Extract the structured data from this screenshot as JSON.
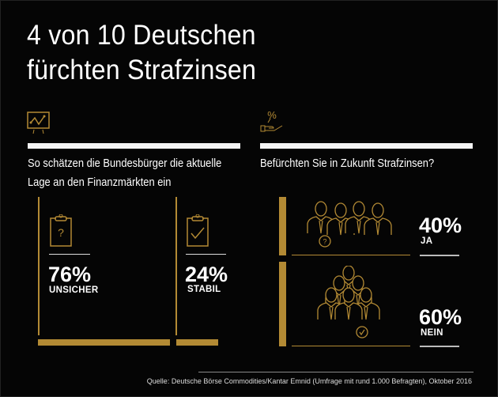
{
  "title": {
    "line1": "4 von 10 Deutschen",
    "line2": "fürchten Strafzinsen"
  },
  "left": {
    "icon": "presentation-chart-icon",
    "question_line1": "So schätzen die Bundesbürger die aktuelle",
    "question_line2": "Lage an den Finanzmärkten ein",
    "items": [
      {
        "icon": "clipboard-question-icon",
        "percent": "76%",
        "label": "UNSICHER",
        "value": 76
      },
      {
        "icon": "clipboard-check-icon",
        "percent": "24%",
        "label": "STABIL",
        "value": 24
      }
    ]
  },
  "right": {
    "icon": "percent-hand-icon",
    "question": "Befürchten Sie in Zukunft Strafzinsen?",
    "items": [
      {
        "icon": "people-question-icon",
        "percent": "40%",
        "label": "JA",
        "value": 40
      },
      {
        "icon": "people-check-icon",
        "percent": "60%",
        "label": "NEIN",
        "value": 60
      }
    ]
  },
  "source": "Quelle: Deutsche Börse Commodities/Kantar Emnid (Umfrage mit rund 1.000 Befragten), Oktober 2016",
  "colors": {
    "gold": "#b38a34",
    "background": "#050505",
    "white": "#f4f4f4"
  }
}
